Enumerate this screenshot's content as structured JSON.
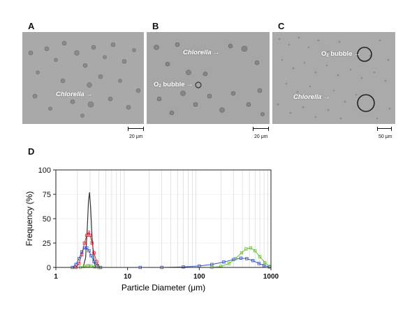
{
  "panels": {
    "a": {
      "letter": "A",
      "label_organism": "Chlorella",
      "label_arrow": "→",
      "scale": "20 μm"
    },
    "b": {
      "letter": "B",
      "label_organism": "Chlorella",
      "label_arrow": "→",
      "label_bubble_o": "O",
      "label_bubble_sub": "2",
      "label_bubble_rest": " bubble",
      "label_bubble_arrow": "→",
      "scale": "20 μm"
    },
    "c": {
      "letter": "C",
      "label_organism": "Chlorella",
      "label_arrow": "→",
      "label_bubble_o": "O",
      "label_bubble_sub": "2",
      "label_bubble_rest": " bubble",
      "label_bubble_arrow": "→",
      "scale": "50 μm"
    },
    "d": {
      "letter": "D"
    }
  },
  "colors": {
    "black": "#333333",
    "red": "#d8283a",
    "blue": "#3655c0",
    "green": "#6abe3c"
  },
  "chart_data": {
    "type": "line",
    "xscale": "log",
    "xlim": [
      1,
      1000
    ],
    "ylim": [
      0,
      100
    ],
    "xlabel": "Particle Diameter (μm)",
    "ylabel": "Frequency (%)",
    "xticks": [
      {
        "value": 1,
        "label": "1"
      },
      {
        "value": 10,
        "label": "10"
      },
      {
        "value": 100,
        "label": "100"
      },
      {
        "value": 1000,
        "label": "1000"
      }
    ],
    "yticks": [
      {
        "value": 0,
        "label": "0"
      },
      {
        "value": 25,
        "label": "25"
      },
      {
        "value": 50,
        "label": "50"
      },
      {
        "value": 75,
        "label": "75"
      },
      {
        "value": 100,
        "label": "100"
      }
    ],
    "series": [
      {
        "name": "black",
        "color": "#333333",
        "marker": "none",
        "x": [
          2.4,
          2.6,
          2.75,
          2.85,
          2.95,
          3.05,
          3.2,
          3.4,
          3.6
        ],
        "y": [
          0,
          10,
          42,
          68,
          77,
          62,
          30,
          6,
          0
        ]
      },
      {
        "name": "red",
        "color": "#d8283a",
        "marker": "square",
        "x": [
          1.9,
          2.1,
          2.3,
          2.5,
          2.7,
          2.85,
          3.0,
          3.2,
          3.4,
          3.7,
          4.0
        ],
        "y": [
          0,
          4,
          13,
          25,
          33,
          36,
          33,
          25,
          15,
          6,
          0
        ]
      },
      {
        "name": "blue",
        "color": "#3655c0",
        "marker": "square",
        "x": [
          1.7,
          1.9,
          2.1,
          2.3,
          2.5,
          2.7,
          2.9,
          3.1,
          3.4,
          3.8,
          4.2,
          15,
          30,
          60,
          100,
          150,
          220,
          300,
          380,
          460,
          560,
          680,
          800,
          950
        ],
        "y": [
          0,
          3,
          9,
          16,
          20,
          20,
          17,
          12,
          6,
          2,
          0,
          0,
          0,
          0.5,
          1.5,
          3,
          5.5,
          8,
          9.5,
          9,
          7,
          4,
          2,
          0.5
        ]
      },
      {
        "name": "green",
        "color": "#6abe3c",
        "marker": "square",
        "x": [
          2.2,
          2.5,
          2.8,
          3.1,
          3.5,
          4.0,
          150,
          200,
          260,
          320,
          390,
          450,
          520,
          600,
          700,
          820,
          950
        ],
        "y": [
          0,
          1,
          2,
          1.5,
          0.5,
          0,
          0,
          1,
          4,
          9,
          15,
          19,
          20,
          17,
          11,
          5,
          1
        ]
      }
    ]
  }
}
